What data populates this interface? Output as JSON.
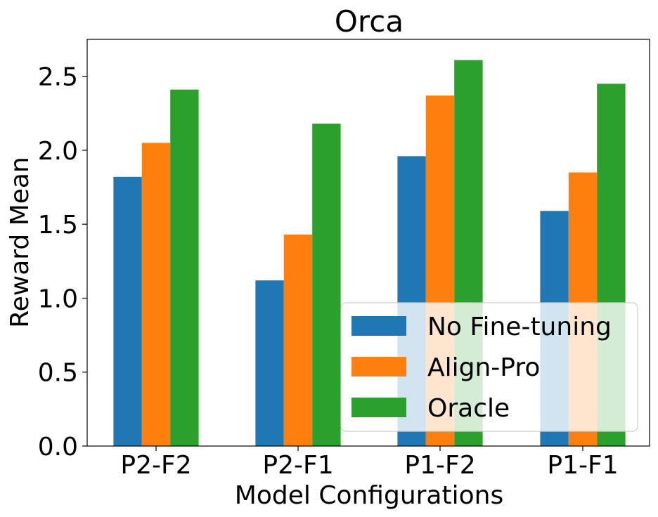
{
  "chart_data": {
    "type": "bar",
    "title": "Orca",
    "xlabel": "Model Configurations",
    "ylabel": "Reward Mean",
    "categories": [
      "P2-F2",
      "P2-F1",
      "P1-F2",
      "P1-F1"
    ],
    "series": [
      {
        "name": "No Fine-tuning",
        "color": "#1f77b4",
        "values": [
          1.82,
          1.12,
          1.96,
          1.59
        ]
      },
      {
        "name": "Align-Pro",
        "color": "#ff7f0e",
        "values": [
          2.05,
          1.43,
          2.37,
          1.85
        ]
      },
      {
        "name": "Oracle",
        "color": "#2ca02c",
        "values": [
          2.41,
          2.18,
          2.61,
          2.45
        ]
      }
    ],
    "ylim": [
      0,
      2.75
    ],
    "yticks": [
      0.0,
      0.5,
      1.0,
      1.5,
      2.0,
      2.5
    ],
    "ytick_labels": [
      "0.0",
      "0.5",
      "1.0",
      "1.5",
      "2.0",
      "2.5"
    ],
    "legend_position": "lower-right",
    "grid": false
  }
}
